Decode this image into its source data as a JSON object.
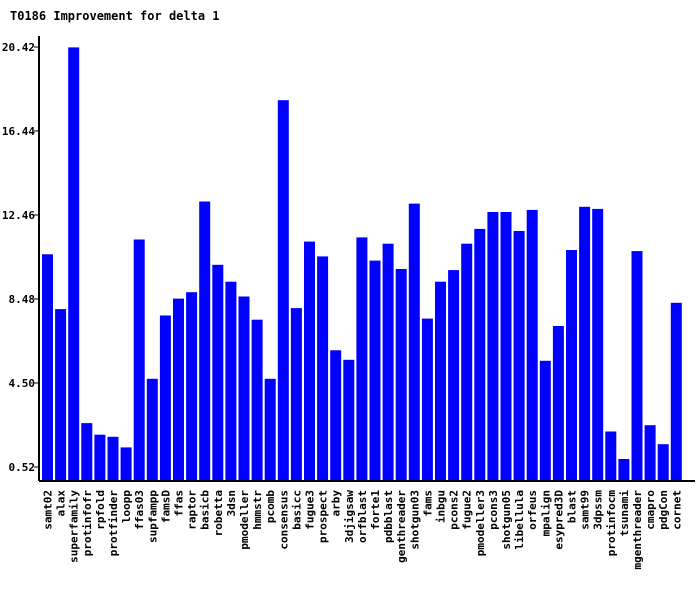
{
  "chart_data": {
    "type": "bar",
    "title": "T0186 Improvement for delta 1",
    "xlabel": "",
    "ylabel": "",
    "ylim": [
      0.52,
      20.42
    ],
    "y_ticks": [
      "0.52",
      "4.50",
      "8.48",
      "12.46",
      "16.44",
      "20.42"
    ],
    "bar_color": "#0000ff",
    "categories": [
      "samt02",
      "alax",
      "superfamily",
      "protinfofr",
      "rpfold",
      "protfinder",
      "loopp",
      "ffas03",
      "supfampp",
      "famsD",
      "ffas",
      "raptor",
      "basicb",
      "robetta",
      "3dsn",
      "pmodeller",
      "hmmstr",
      "pcomb",
      "consensus",
      "basicc",
      "fugue3",
      "prospect",
      "arby",
      "3djigsaw",
      "orfblast",
      "forte1",
      "pdbblast",
      "genthreader",
      "shotgun03",
      "fams",
      "inbgu",
      "pcons2",
      "fugue2",
      "pmodeller3",
      "pcons3",
      "shotgun05",
      "libellula",
      "orfeus",
      "mpalign",
      "esypred3D",
      "blast",
      "samt99",
      "3dpssm",
      "protinfocm",
      "tsunami",
      "mgenthreader",
      "cmapro",
      "pdgCon",
      "cornet"
    ],
    "values": [
      10.6,
      8.0,
      20.4,
      2.6,
      2.05,
      1.95,
      1.45,
      11.3,
      4.7,
      7.7,
      8.5,
      8.8,
      13.1,
      10.1,
      9.3,
      8.6,
      7.5,
      4.7,
      17.9,
      8.05,
      11.2,
      10.5,
      6.05,
      5.6,
      11.4,
      10.3,
      11.1,
      9.9,
      13.0,
      7.55,
      9.3,
      9.85,
      11.1,
      11.8,
      12.6,
      12.6,
      11.7,
      12.7,
      5.55,
      7.2,
      10.8,
      12.85,
      12.75,
      2.2,
      0.9,
      10.75,
      2.5,
      1.6,
      8.3
    ]
  }
}
